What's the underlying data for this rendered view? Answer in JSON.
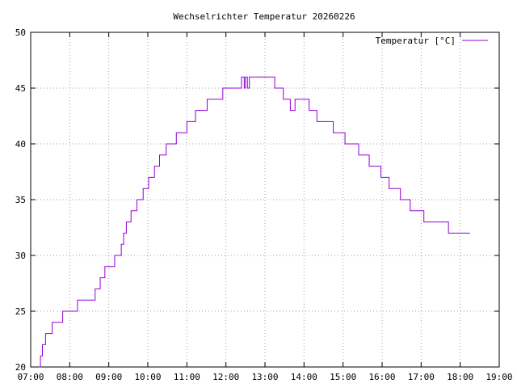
{
  "chart_data": {
    "type": "line",
    "title": "Wechselrichter Temperatur 20260226",
    "xlabel": "",
    "ylabel": "",
    "x_unit": "hours",
    "xlim": [
      7,
      19
    ],
    "ylim": [
      20,
      50
    ],
    "x_ticks": [
      7,
      8,
      9,
      10,
      11,
      12,
      13,
      14,
      15,
      16,
      17,
      18,
      19
    ],
    "x_tick_labels": [
      "07:00",
      "08:00",
      "09:00",
      "10:00",
      "11:00",
      "12:00",
      "13:00",
      "14:00",
      "15:00",
      "16:00",
      "17:00",
      "18:00",
      "19:00"
    ],
    "y_ticks": [
      20,
      25,
      30,
      35,
      40,
      45,
      50
    ],
    "y_tick_labels": [
      "20",
      "25",
      "30",
      "35",
      "40",
      "45",
      "50"
    ],
    "grid": true,
    "legend_position": "top-right",
    "step": true,
    "series": [
      {
        "name": "Temperatur [°C]",
        "color": "#9400d3",
        "points": [
          [
            7.22,
            20
          ],
          [
            7.25,
            21
          ],
          [
            7.3,
            22
          ],
          [
            7.38,
            23
          ],
          [
            7.55,
            24
          ],
          [
            7.82,
            25
          ],
          [
            8.2,
            26
          ],
          [
            8.65,
            27
          ],
          [
            8.78,
            28
          ],
          [
            8.9,
            29
          ],
          [
            9.15,
            30
          ],
          [
            9.32,
            31
          ],
          [
            9.38,
            32
          ],
          [
            9.45,
            33
          ],
          [
            9.57,
            34
          ],
          [
            9.72,
            35
          ],
          [
            9.88,
            36
          ],
          [
            10.02,
            37
          ],
          [
            10.17,
            38
          ],
          [
            10.3,
            39
          ],
          [
            10.47,
            40
          ],
          [
            10.73,
            41
          ],
          [
            11.0,
            42
          ],
          [
            11.22,
            43
          ],
          [
            11.52,
            44
          ],
          [
            11.92,
            45
          ],
          [
            12.4,
            46
          ],
          [
            12.47,
            45
          ],
          [
            12.5,
            46
          ],
          [
            12.55,
            45
          ],
          [
            12.6,
            46
          ],
          [
            13.25,
            45
          ],
          [
            13.47,
            44
          ],
          [
            13.65,
            43
          ],
          [
            13.77,
            44
          ],
          [
            14.13,
            43
          ],
          [
            14.33,
            42
          ],
          [
            14.75,
            41
          ],
          [
            15.05,
            40
          ],
          [
            15.4,
            39
          ],
          [
            15.67,
            38
          ],
          [
            15.97,
            37
          ],
          [
            16.18,
            36
          ],
          [
            16.47,
            35
          ],
          [
            16.72,
            34
          ],
          [
            17.07,
            33
          ],
          [
            17.7,
            32
          ],
          [
            18.25,
            32
          ]
        ]
      }
    ]
  }
}
